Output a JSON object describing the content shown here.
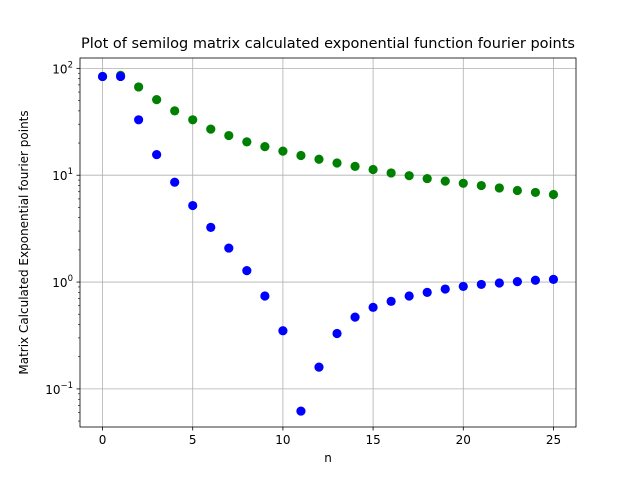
{
  "chart_data": {
    "type": "scatter",
    "title": "Plot of semilog matrix calculated exponential function fourier points",
    "xlabel": "n",
    "ylabel": "Matrix Calculated Exponential fourier points",
    "xlim": [
      -1.25,
      26.25
    ],
    "ylim": [
      0.044,
      125
    ],
    "yscale": "log",
    "grid": true,
    "x_ticks": [
      0,
      5,
      10,
      15,
      20,
      25
    ],
    "y_ticks": [
      {
        "value": 0.1,
        "base": "10",
        "exp": "−1"
      },
      {
        "value": 1,
        "base": "10",
        "exp": "0"
      },
      {
        "value": 10,
        "base": "10",
        "exp": "1"
      },
      {
        "value": 100,
        "base": "10",
        "exp": "2"
      }
    ],
    "x": [
      0,
      1,
      2,
      3,
      4,
      5,
      6,
      7,
      8,
      9,
      10,
      11,
      12,
      13,
      14,
      15,
      16,
      17,
      18,
      19,
      20,
      21,
      22,
      23,
      24,
      25
    ],
    "series": [
      {
        "color": "#008000",
        "values": [
          84,
          86,
          67,
          51,
          40,
          33,
          27,
          23.5,
          20.5,
          18.5,
          16.8,
          15.3,
          14.1,
          13.0,
          12.1,
          11.3,
          10.5,
          9.9,
          9.3,
          8.8,
          8.4,
          8.0,
          7.6,
          7.2,
          6.9,
          6.6
        ]
      },
      {
        "color": "#0000ff",
        "values": [
          84,
          84,
          33,
          15.6,
          8.6,
          5.2,
          3.25,
          2.08,
          1.28,
          0.74,
          0.35,
          0.062,
          0.16,
          0.33,
          0.47,
          0.58,
          0.66,
          0.74,
          0.8,
          0.86,
          0.91,
          0.95,
          0.98,
          1.01,
          1.04,
          1.06
        ]
      }
    ]
  }
}
